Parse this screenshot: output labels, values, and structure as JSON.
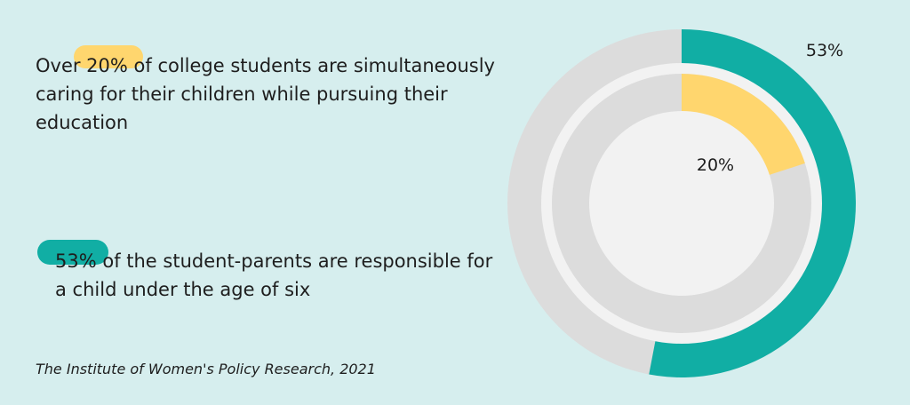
{
  "chart_data": {
    "type": "pie",
    "rings": [
      {
        "ring": "outer",
        "label": "53%",
        "value": 53,
        "color": "#11aea4",
        "track_color": "#dcdcdc"
      },
      {
        "ring": "inner",
        "label": "20%",
        "value": 20,
        "color": "#ffd66e",
        "track_color": "#dcdcdc"
      }
    ]
  },
  "stats": [
    {
      "text": "Over 20% of college students are simultaneously caring for their children while pursuing their education",
      "highlight_color": "#ffd66e"
    },
    {
      "text": "53% of the student-parents are responsible for a child under the age of six",
      "highlight_color": "#11aea4"
    }
  ],
  "source": "The Institute of Women's Policy Research, 2021"
}
